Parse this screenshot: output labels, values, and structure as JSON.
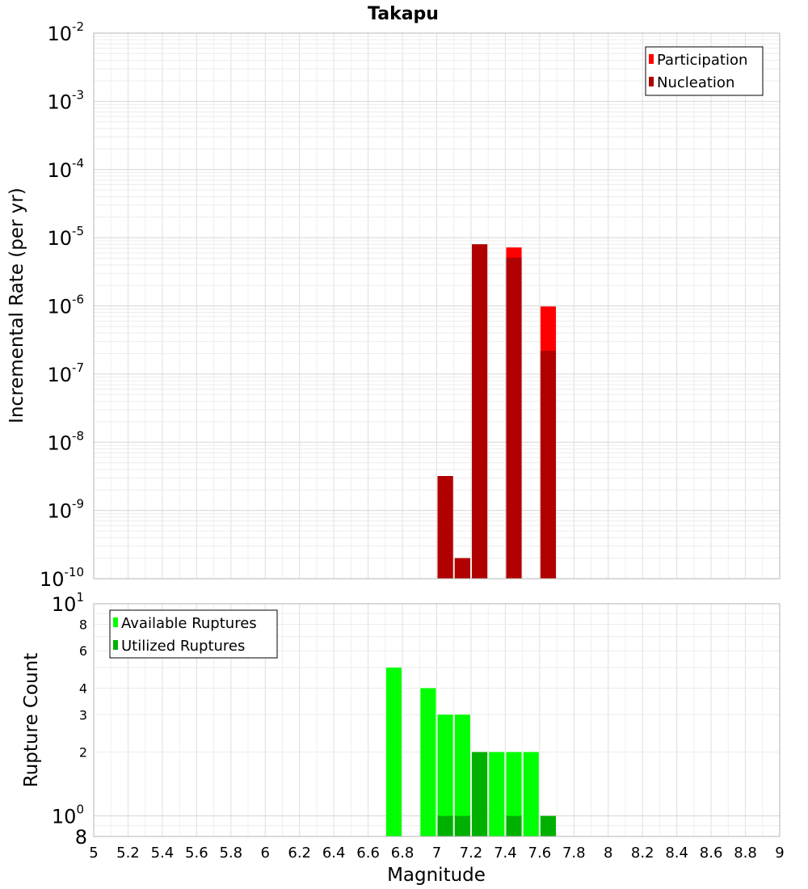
{
  "chart_data": [
    {
      "type": "bar",
      "title": "Takapu",
      "ylabel": "Incremental Rate (per yr)",
      "xlim": [
        5,
        9
      ],
      "ylim": [
        1e-10,
        0.01
      ],
      "yscale": "log",
      "grid": true,
      "legend_position": "top-right",
      "y_ticks": [
        {
          "base": "10",
          "exp": "-10"
        },
        {
          "base": "10",
          "exp": "-9"
        },
        {
          "base": "10",
          "exp": "-8"
        },
        {
          "base": "10",
          "exp": "-7"
        },
        {
          "base": "10",
          "exp": "-6"
        },
        {
          "base": "10",
          "exp": "-5"
        },
        {
          "base": "10",
          "exp": "-4"
        },
        {
          "base": "10",
          "exp": "-3"
        },
        {
          "base": "10",
          "exp": "-2"
        }
      ],
      "series": [
        {
          "name": "Participation",
          "color": "#ff0000",
          "points": [
            {
              "x": 7.05,
              "y": 3.2e-09
            },
            {
              "x": 7.15,
              "y": 2e-10
            },
            {
              "x": 7.25,
              "y": 8e-06
            },
            {
              "x": 7.45,
              "y": 7.2e-06
            },
            {
              "x": 7.65,
              "y": 9.8e-07
            }
          ]
        },
        {
          "name": "Nucleation",
          "color": "#b00000",
          "points": [
            {
              "x": 7.05,
              "y": 3.2e-09
            },
            {
              "x": 7.15,
              "y": 2e-10
            },
            {
              "x": 7.25,
              "y": 8e-06
            },
            {
              "x": 7.45,
              "y": 5.1e-06
            },
            {
              "x": 7.65,
              "y": 2.2e-07
            }
          ]
        }
      ]
    },
    {
      "type": "bar",
      "xlabel": "Magnitude",
      "ylabel": "Rupture Count",
      "xlim": [
        5,
        9
      ],
      "ylim": [
        0.8,
        10
      ],
      "yscale": "log",
      "grid": true,
      "legend_position": "top-left",
      "x_ticks": [
        "5",
        "5.2",
        "5.4",
        "5.6",
        "5.8",
        "6",
        "6.2",
        "6.4",
        "6.6",
        "6.8",
        "7",
        "7.2",
        "7.4",
        "7.6",
        "7.8",
        "8",
        "8.2",
        "8.4",
        "8.6",
        "8.8",
        "9"
      ],
      "y_major_ticks": [
        {
          "value": 1,
          "base": "10",
          "exp": "0"
        },
        {
          "value": 10,
          "base": "10",
          "exp": "1"
        }
      ],
      "y_minor_ticks": [
        {
          "value": 0.8,
          "label": "8"
        },
        {
          "value": 2,
          "label": "2"
        },
        {
          "value": 3,
          "label": "3"
        },
        {
          "value": 4,
          "label": "4"
        },
        {
          "value": 6,
          "label": "6"
        },
        {
          "value": 8,
          "label": "8"
        }
      ],
      "series": [
        {
          "name": "Available Ruptures",
          "color": "#00ff00",
          "points": [
            {
              "x": 6.75,
              "y": 5
            },
            {
              "x": 6.95,
              "y": 4
            },
            {
              "x": 7.05,
              "y": 3
            },
            {
              "x": 7.15,
              "y": 3
            },
            {
              "x": 7.25,
              "y": 2
            },
            {
              "x": 7.35,
              "y": 2
            },
            {
              "x": 7.45,
              "y": 2
            },
            {
              "x": 7.55,
              "y": 2
            }
          ]
        },
        {
          "name": "Utilized Ruptures",
          "color": "#00b000",
          "points": [
            {
              "x": 7.05,
              "y": 1
            },
            {
              "x": 7.15,
              "y": 1
            },
            {
              "x": 7.25,
              "y": 2
            },
            {
              "x": 7.45,
              "y": 1
            },
            {
              "x": 7.65,
              "y": 1
            }
          ]
        }
      ]
    }
  ]
}
